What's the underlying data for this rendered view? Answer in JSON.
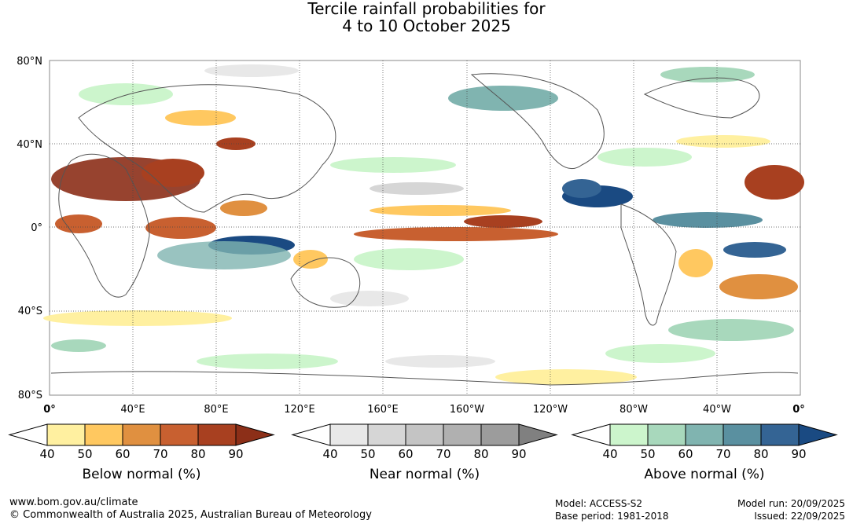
{
  "title": {
    "line1": "Tercile rainfall probabilities for",
    "line2": "4 to 10 October 2025"
  },
  "axes": {
    "lat_labels": [
      "80°N",
      "40°N",
      "0°",
      "40°S",
      "80°S"
    ],
    "lon_labels": [
      "0°",
      "40°E",
      "80°E",
      "120°E",
      "160°E",
      "160°W",
      "120°W",
      "80°W",
      "40°W",
      "0°"
    ]
  },
  "colorbars": [
    {
      "name": "below",
      "label": "Below normal (%)",
      "ticks": [
        "40",
        "50",
        "60",
        "70",
        "80",
        "90"
      ],
      "colors": [
        "#ffffff",
        "#fff0a0",
        "#ffc860",
        "#e09040",
        "#c86030",
        "#a84020",
        "#8c2f18"
      ]
    },
    {
      "name": "near",
      "label": "Near normal (%)",
      "ticks": [
        "40",
        "50",
        "60",
        "70",
        "80",
        "90"
      ],
      "colors": [
        "#ffffff",
        "#e8e8e8",
        "#d6d6d6",
        "#c4c4c4",
        "#b0b0b0",
        "#9c9c9c",
        "#808080"
      ]
    },
    {
      "name": "above",
      "label": "Above normal (%)",
      "ticks": [
        "40",
        "50",
        "60",
        "70",
        "80",
        "90"
      ],
      "colors": [
        "#ffffff",
        "#ccf5cc",
        "#a8d8bc",
        "#80b4b0",
        "#5a90a0",
        "#346494",
        "#1a4a82"
      ]
    }
  ],
  "footer": {
    "url": "www.bom.gov.au/climate",
    "copyright": "© Commonwealth of Australia 2025, Australian Bureau of Meteorology",
    "model": "Model: ACCESS-S2",
    "base_period": "Base period: 1981-2018",
    "model_run": "Model run: 20/09/2025",
    "issued": "Issued: 22/09/2025"
  }
}
